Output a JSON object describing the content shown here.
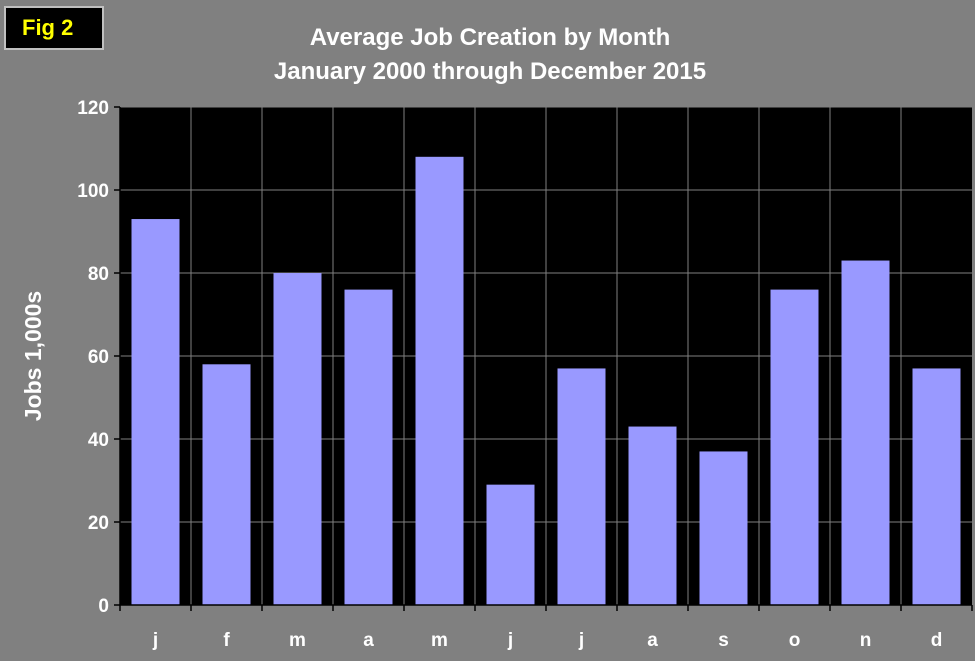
{
  "badge": {
    "label": "Fig 2"
  },
  "chart_data": {
    "type": "bar",
    "title": "Average Job Creation by Month",
    "subtitle": "January 2000 through December 2015",
    "xlabel": "",
    "ylabel": "Jobs 1,000s",
    "categories": [
      "j",
      "f",
      "m",
      "a",
      "m",
      "j",
      "j",
      "a",
      "s",
      "o",
      "n",
      "d"
    ],
    "values": [
      93,
      58,
      80,
      76,
      108,
      29,
      57,
      43,
      37,
      76,
      83,
      57
    ],
    "ylim": [
      0,
      120
    ],
    "yticks": [
      0,
      20,
      40,
      60,
      80,
      100,
      120
    ],
    "grid": true,
    "legend": "none",
    "colors": {
      "bar": "#9999ff",
      "plot_background": "#000000",
      "figure_background": "#808080",
      "grid": "#808080",
      "text": "#ffffff",
      "badge_text": "#ffff00"
    }
  }
}
